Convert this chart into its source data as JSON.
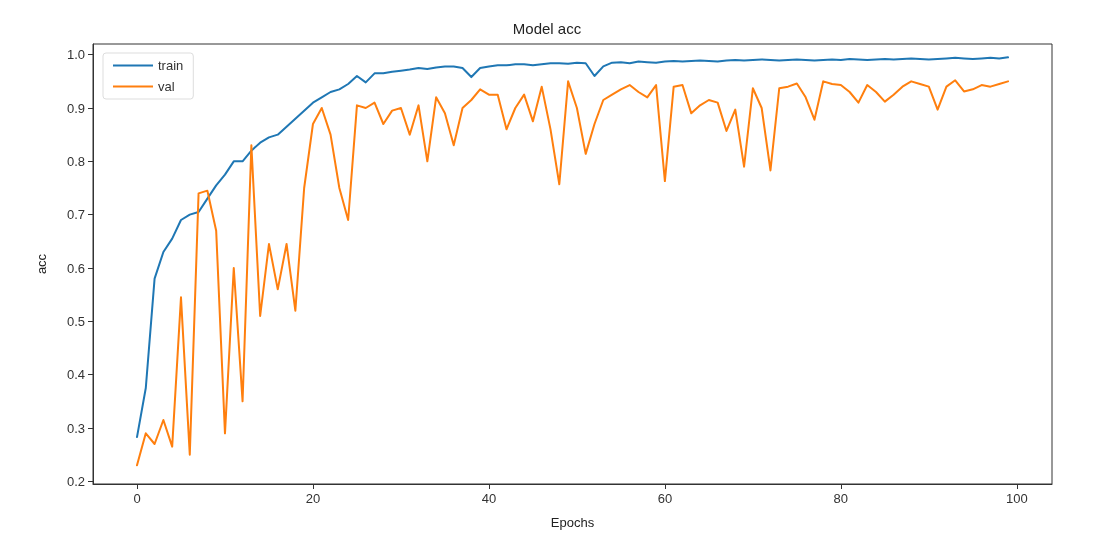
{
  "chart_data": {
    "type": "line",
    "title": "Model acc",
    "xlabel": "Epochs",
    "ylabel": "acc",
    "x": [
      0,
      1,
      2,
      3,
      4,
      5,
      6,
      7,
      8,
      9,
      10,
      11,
      12,
      13,
      14,
      15,
      16,
      17,
      18,
      19,
      20,
      21,
      22,
      23,
      24,
      25,
      26,
      27,
      28,
      29,
      30,
      31,
      32,
      33,
      34,
      35,
      36,
      37,
      38,
      39,
      40,
      41,
      42,
      43,
      44,
      45,
      46,
      47,
      48,
      49,
      50,
      51,
      52,
      53,
      54,
      55,
      56,
      57,
      58,
      59,
      60,
      61,
      62,
      63,
      64,
      65,
      66,
      67,
      68,
      69,
      70,
      71,
      72,
      73,
      74,
      75,
      76,
      77,
      78,
      79,
      80,
      81,
      82,
      83,
      84,
      85,
      86,
      87,
      88,
      89,
      90,
      91,
      92,
      93,
      94,
      95,
      96,
      97,
      98,
      99
    ],
    "series": [
      {
        "name": "train",
        "color": "#1f77b4",
        "values": [
          0.283,
          0.375,
          0.58,
          0.63,
          0.655,
          0.69,
          0.7,
          0.705,
          0.73,
          0.755,
          0.775,
          0.8,
          0.8,
          0.82,
          0.835,
          0.845,
          0.85,
          0.865,
          0.88,
          0.895,
          0.91,
          0.92,
          0.93,
          0.935,
          0.945,
          0.96,
          0.948,
          0.965,
          0.965,
          0.968,
          0.97,
          0.972,
          0.975,
          0.973,
          0.976,
          0.978,
          0.978,
          0.975,
          0.958,
          0.975,
          0.978,
          0.98,
          0.98,
          0.982,
          0.982,
          0.98,
          0.982,
          0.984,
          0.984,
          0.983,
          0.985,
          0.984,
          0.96,
          0.978,
          0.985,
          0.986,
          0.984,
          0.987,
          0.986,
          0.985,
          0.987,
          0.988,
          0.987,
          0.988,
          0.989,
          0.988,
          0.987,
          0.989,
          0.99,
          0.989,
          0.99,
          0.991,
          0.99,
          0.989,
          0.99,
          0.991,
          0.99,
          0.989,
          0.99,
          0.991,
          0.99,
          0.992,
          0.991,
          0.99,
          0.991,
          0.992,
          0.991,
          0.992,
          0.993,
          0.992,
          0.991,
          0.992,
          0.993,
          0.994,
          0.993,
          0.992,
          0.993,
          0.994,
          0.993,
          0.995
        ]
      },
      {
        "name": "val",
        "color": "#ff7f0e",
        "values": [
          0.23,
          0.29,
          0.27,
          0.315,
          0.265,
          0.545,
          0.25,
          0.74,
          0.745,
          0.67,
          0.29,
          0.6,
          0.35,
          0.83,
          0.51,
          0.645,
          0.56,
          0.645,
          0.52,
          0.75,
          0.87,
          0.9,
          0.85,
          0.75,
          0.69,
          0.905,
          0.9,
          0.91,
          0.87,
          0.895,
          0.9,
          0.85,
          0.905,
          0.8,
          0.92,
          0.89,
          0.83,
          0.9,
          0.915,
          0.935,
          0.925,
          0.925,
          0.86,
          0.9,
          0.925,
          0.875,
          0.94,
          0.86,
          0.757,
          0.95,
          0.9,
          0.814,
          0.87,
          0.915,
          0.925,
          0.935,
          0.943,
          0.93,
          0.92,
          0.943,
          0.763,
          0.94,
          0.943,
          0.89,
          0.905,
          0.915,
          0.91,
          0.857,
          0.897,
          0.79,
          0.937,
          0.9,
          0.783,
          0.937,
          0.94,
          0.946,
          0.92,
          0.878,
          0.95,
          0.945,
          0.943,
          0.93,
          0.91,
          0.943,
          0.93,
          0.912,
          0.925,
          0.94,
          0.95,
          0.945,
          0.94,
          0.897,
          0.94,
          0.952,
          0.931,
          0.935,
          0.943,
          0.94,
          0.945,
          0.95
        ]
      }
    ],
    "xlim": [
      -5,
      104
    ],
    "xticks": [
      0,
      20,
      40,
      60,
      80,
      100
    ],
    "ylim": [
      0.195,
      1.02
    ],
    "yticks": [
      0.2,
      0.3,
      0.4,
      0.5,
      0.6,
      0.7,
      0.8,
      0.9,
      {
        "value": 1,
        "label": "1.0"
      }
    ],
    "grid": false,
    "legend": "top left",
    "marker": "none",
    "line_style": "solid"
  }
}
